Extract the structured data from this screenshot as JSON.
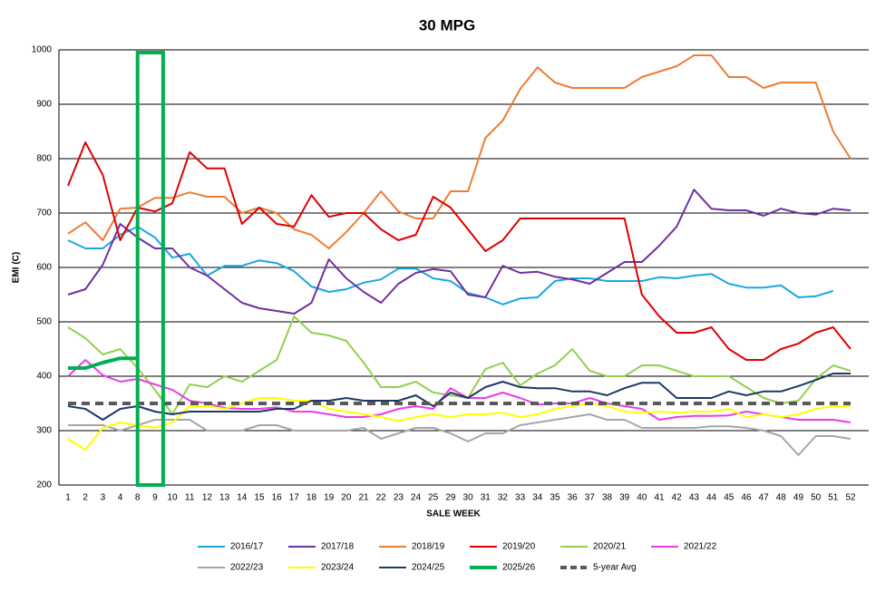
{
  "chart_data": {
    "type": "line",
    "title": "30 MPG",
    "x_label": "SALE WEEK",
    "y_label": "EMI (C)",
    "categories": [
      "1",
      "2",
      "3",
      "4",
      "8",
      "9",
      "10",
      "11",
      "12",
      "13",
      "14",
      "15",
      "16",
      "17",
      "18",
      "19",
      "20",
      "21",
      "22",
      "23",
      "24",
      "25",
      "29",
      "30",
      "31",
      "32",
      "33",
      "34",
      "35",
      "36",
      "37",
      "38",
      "39",
      "40",
      "41",
      "42",
      "43",
      "44",
      "45",
      "46",
      "47",
      "48",
      "49",
      "50",
      "51",
      "52"
    ],
    "ylim": [
      200,
      1000
    ],
    "yticks": [
      200,
      300,
      400,
      500,
      600,
      700,
      800,
      900,
      1000
    ],
    "grid": true,
    "series": [
      {
        "name": "2016/17",
        "color": "#1aa7e0",
        "values": [
          650,
          635,
          635,
          660,
          675,
          655,
          618,
          625,
          585,
          603,
          603,
          613,
          608,
          593,
          565,
          555,
          560,
          572,
          578,
          598,
          598,
          580,
          575,
          553,
          545,
          532,
          543,
          545,
          575,
          580,
          580,
          575,
          575,
          575,
          582,
          580,
          585,
          588,
          570,
          563,
          563,
          567,
          545,
          547,
          557,
          null
        ]
      },
      {
        "name": "2017/18",
        "color": "#7030a0",
        "values": [
          550,
          560,
          605,
          680,
          655,
          635,
          635,
          600,
          585,
          560,
          535,
          525,
          520,
          515,
          535,
          615,
          580,
          555,
          535,
          570,
          590,
          597,
          593,
          550,
          545,
          603,
          590,
          592,
          583,
          578,
          570,
          590,
          610,
          610,
          640,
          675,
          743,
          708,
          705,
          705,
          695,
          708,
          700,
          697,
          708,
          705
        ]
      },
      {
        "name": "2018/19",
        "color": "#ed7d31",
        "values": [
          662,
          683,
          650,
          708,
          710,
          728,
          728,
          738,
          730,
          730,
          700,
          710,
          700,
          670,
          660,
          635,
          665,
          700,
          740,
          703,
          690,
          690,
          740,
          740,
          838,
          870,
          928,
          968,
          940,
          930,
          930,
          930,
          930,
          950,
          960,
          970,
          990,
          990,
          950,
          950,
          930,
          940,
          940,
          940,
          850,
          800
        ]
      },
      {
        "name": "2019/20",
        "color": "#e00000",
        "values": [
          750,
          830,
          770,
          650,
          710,
          703,
          718,
          812,
          782,
          782,
          680,
          710,
          680,
          675,
          733,
          693,
          700,
          700,
          670,
          650,
          660,
          730,
          710,
          670,
          630,
          650,
          690,
          690,
          690,
          690,
          690,
          690,
          690,
          550,
          510,
          480,
          480,
          490,
          450,
          430,
          430,
          450,
          460,
          480,
          490,
          450
        ]
      },
      {
        "name": "2020/21",
        "color": "#92d050",
        "values": [
          490,
          470,
          440,
          450,
          415,
          375,
          330,
          385,
          380,
          400,
          390,
          410,
          430,
          510,
          480,
          475,
          465,
          425,
          380,
          380,
          390,
          370,
          365,
          360,
          413,
          425,
          383,
          405,
          420,
          450,
          410,
          400,
          400,
          420,
          420,
          410,
          400,
          400,
          400,
          380,
          360,
          350,
          355,
          395,
          420,
          410
        ]
      },
      {
        "name": "2021/22",
        "color": "#e83ee8",
        "values": [
          400,
          430,
          402,
          390,
          395,
          385,
          375,
          355,
          350,
          342,
          340,
          340,
          343,
          335,
          335,
          330,
          325,
          325,
          330,
          340,
          345,
          340,
          378,
          360,
          360,
          370,
          360,
          348,
          350,
          350,
          360,
          350,
          345,
          340,
          320,
          325,
          327,
          327,
          328,
          335,
          330,
          325,
          320,
          320,
          320,
          315
        ]
      },
      {
        "name": "2022/23",
        "color": "#a6a6a6",
        "values": [
          310,
          310,
          310,
          300,
          310,
          320,
          320,
          320,
          300,
          300,
          300,
          310,
          310,
          300,
          300,
          300,
          300,
          305,
          285,
          295,
          305,
          305,
          295,
          280,
          295,
          295,
          310,
          315,
          320,
          325,
          330,
          320,
          320,
          305,
          305,
          305,
          305,
          308,
          308,
          305,
          300,
          290,
          255,
          290,
          290,
          285
        ]
      },
      {
        "name": "2023/24",
        "color": "#ffff00",
        "values": [
          285,
          265,
          305,
          315,
          310,
          305,
          315,
          345,
          345,
          340,
          350,
          360,
          360,
          355,
          355,
          340,
          335,
          330,
          325,
          318,
          325,
          330,
          325,
          330,
          330,
          333,
          325,
          330,
          340,
          345,
          350,
          345,
          335,
          333,
          335,
          333,
          335,
          335,
          340,
          325,
          330,
          325,
          330,
          340,
          345,
          345
        ]
      },
      {
        "name": "2024/25",
        "color": "#1f3864",
        "values": [
          345,
          340,
          320,
          340,
          345,
          335,
          330,
          335,
          335,
          335,
          335,
          335,
          340,
          340,
          355,
          355,
          360,
          355,
          355,
          355,
          365,
          345,
          370,
          360,
          380,
          390,
          380,
          378,
          378,
          372,
          372,
          365,
          378,
          388,
          388,
          360,
          360,
          360,
          372,
          365,
          372,
          372,
          382,
          393,
          405,
          405
        ]
      },
      {
        "name": "2025/26",
        "color": "#00b050",
        "width": 4,
        "values": [
          415,
          415,
          425,
          433,
          433,
          null,
          null,
          null,
          null,
          null,
          null,
          null,
          null,
          null,
          null,
          null,
          null,
          null,
          null,
          null,
          null,
          null,
          null,
          null,
          null,
          null,
          null,
          null,
          null,
          null,
          null,
          null,
          null,
          null,
          null,
          null,
          null,
          null,
          null,
          null,
          null,
          null,
          null,
          null,
          null,
          null
        ]
      },
      {
        "name": "5-year Avg",
        "color": "#595959",
        "width": 4,
        "dashed": true,
        "values": [
          350,
          350,
          350,
          350,
          350,
          350,
          350,
          350,
          350,
          350,
          350,
          350,
          350,
          350,
          350,
          350,
          350,
          350,
          350,
          350,
          350,
          350,
          350,
          350,
          350,
          350,
          350,
          350,
          350,
          350,
          350,
          350,
          350,
          350,
          350,
          350,
          350,
          350,
          350,
          350,
          350,
          350,
          350,
          350,
          350,
          350
        ]
      }
    ]
  }
}
